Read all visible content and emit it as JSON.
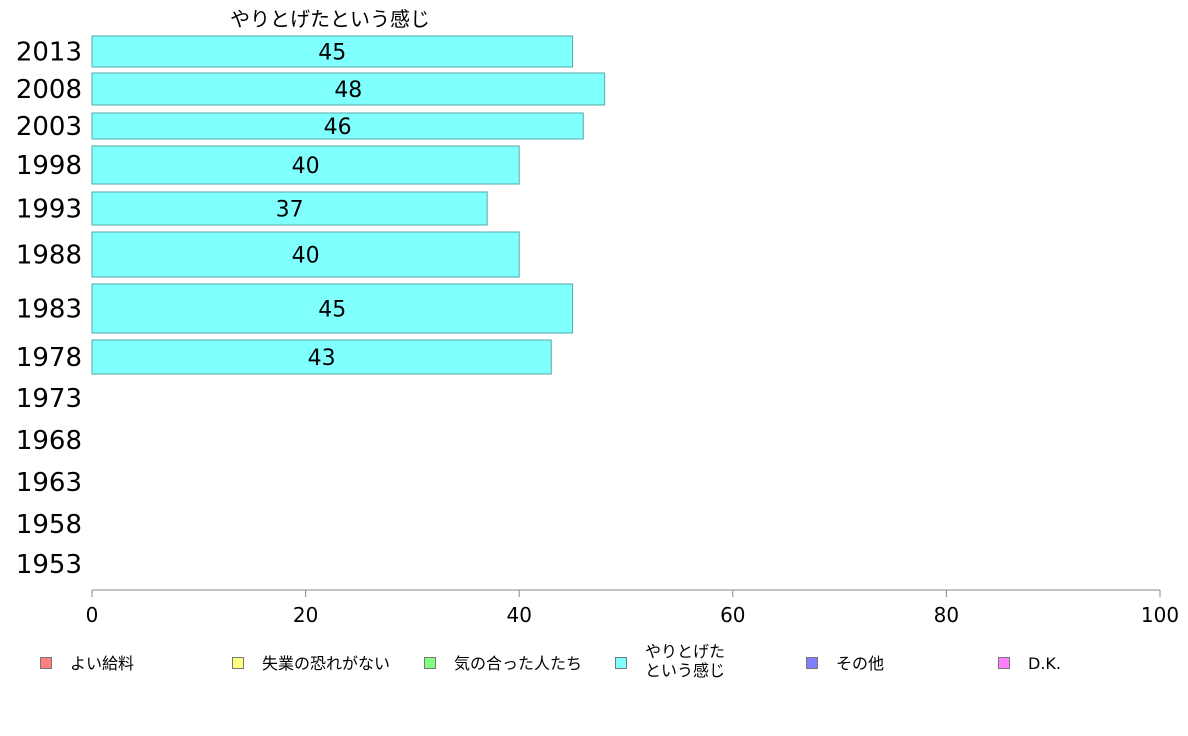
{
  "chart_data": {
    "type": "bar",
    "orientation": "horizontal",
    "title": "やりとげたという感じ",
    "categories": [
      "2013",
      "2008",
      "2003",
      "1998",
      "1993",
      "1988",
      "1983",
      "1978",
      "1973",
      "1968",
      "1963",
      "1958",
      "1953"
    ],
    "series": [
      {
        "name": "やりとげたという感じ",
        "values": [
          45,
          48,
          46,
          40,
          37,
          40,
          45,
          43,
          null,
          null,
          null,
          null,
          null
        ],
        "color": "#80ffff"
      }
    ],
    "xlim": [
      0,
      100
    ],
    "xticks": [
      "0",
      "20",
      "40",
      "60",
      "80",
      "100"
    ],
    "grid": false,
    "legend_position": "bottom"
  },
  "legend": [
    {
      "label": "よい給料",
      "color": "#ff8080"
    },
    {
      "label": "失業の恐れがない",
      "color": "#ffff80"
    },
    {
      "label": "気の合った人たち",
      "color": "#80ff80"
    },
    {
      "label": "やりとげた\nという感じ",
      "color": "#80ffff"
    },
    {
      "label": "その他",
      "color": "#8080ff"
    },
    {
      "label": "D.K.",
      "color": "#ff80ff"
    }
  ]
}
